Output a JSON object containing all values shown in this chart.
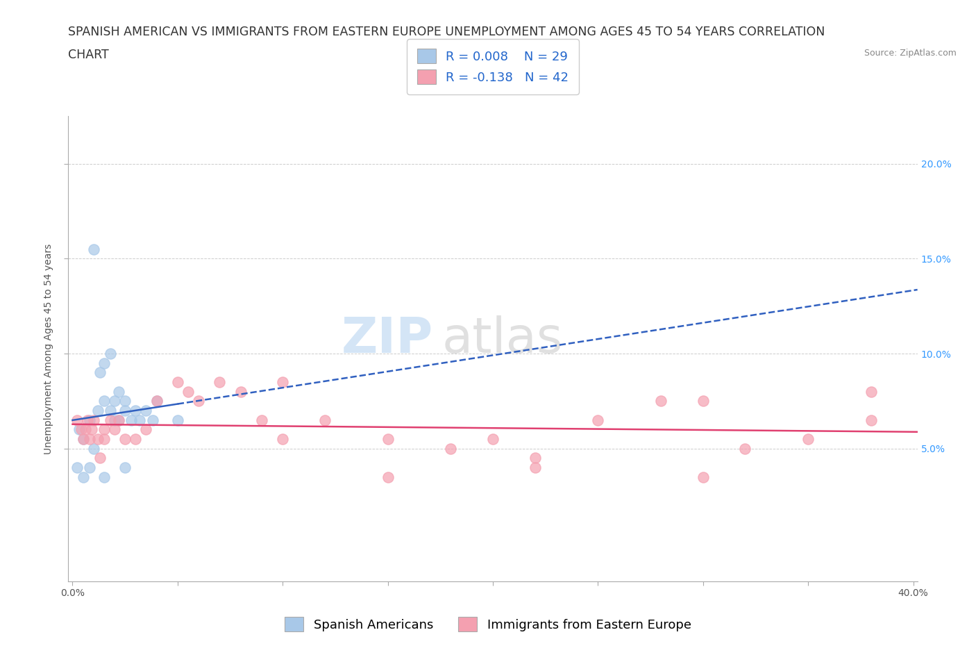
{
  "title_line1": "SPANISH AMERICAN VS IMMIGRANTS FROM EASTERN EUROPE UNEMPLOYMENT AMONG AGES 45 TO 54 YEARS CORRELATION",
  "title_line2": "CHART",
  "source_text": "Source: ZipAtlas.com",
  "ylabel": "Unemployment Among Ages 45 to 54 years",
  "xlim": [
    -0.002,
    0.402
  ],
  "ylim": [
    -0.02,
    0.225
  ],
  "xtick_labels": [
    "0.0%",
    "",
    "",
    "",
    "",
    "",
    "",
    "",
    "40.0%"
  ],
  "xtick_values": [
    0.0,
    0.05,
    0.1,
    0.15,
    0.2,
    0.25,
    0.3,
    0.35,
    0.4
  ],
  "ytick_labels": [
    "5.0%",
    "10.0%",
    "15.0%",
    "20.0%"
  ],
  "ytick_values": [
    0.05,
    0.1,
    0.15,
    0.2
  ],
  "blue_color": "#a8c8e8",
  "pink_color": "#f4a0b0",
  "blue_line_color": "#3060c0",
  "pink_line_color": "#e04070",
  "r_blue": 0.008,
  "n_blue": 29,
  "r_pink": -0.138,
  "n_pink": 42,
  "legend_label_blue": "Spanish Americans",
  "legend_label_pink": "Immigrants from Eastern Europe",
  "watermark_zip": "ZIP",
  "watermark_atlas": "atlas",
  "blue_scatter_x": [
    0.003,
    0.005,
    0.008,
    0.01,
    0.01,
    0.012,
    0.013,
    0.015,
    0.015,
    0.018,
    0.018,
    0.02,
    0.02,
    0.022,
    0.022,
    0.025,
    0.025,
    0.028,
    0.03,
    0.032,
    0.035,
    0.038,
    0.04,
    0.002,
    0.005,
    0.008,
    0.015,
    0.025,
    0.05
  ],
  "blue_scatter_y": [
    0.06,
    0.055,
    0.065,
    0.05,
    0.155,
    0.07,
    0.09,
    0.075,
    0.095,
    0.1,
    0.07,
    0.075,
    0.065,
    0.08,
    0.065,
    0.075,
    0.07,
    0.065,
    0.07,
    0.065,
    0.07,
    0.065,
    0.075,
    0.04,
    0.035,
    0.04,
    0.035,
    0.04,
    0.065
  ],
  "pink_scatter_x": [
    0.002,
    0.004,
    0.005,
    0.006,
    0.007,
    0.008,
    0.009,
    0.01,
    0.012,
    0.013,
    0.015,
    0.015,
    0.018,
    0.02,
    0.022,
    0.025,
    0.03,
    0.035,
    0.04,
    0.05,
    0.055,
    0.06,
    0.07,
    0.08,
    0.09,
    0.1,
    0.12,
    0.15,
    0.18,
    0.2,
    0.22,
    0.25,
    0.28,
    0.3,
    0.32,
    0.35,
    0.38,
    0.1,
    0.15,
    0.22,
    0.3,
    0.38
  ],
  "pink_scatter_y": [
    0.065,
    0.06,
    0.055,
    0.06,
    0.065,
    0.055,
    0.06,
    0.065,
    0.055,
    0.045,
    0.06,
    0.055,
    0.065,
    0.06,
    0.065,
    0.055,
    0.055,
    0.06,
    0.075,
    0.085,
    0.08,
    0.075,
    0.085,
    0.08,
    0.065,
    0.055,
    0.065,
    0.055,
    0.05,
    0.055,
    0.045,
    0.065,
    0.075,
    0.035,
    0.05,
    0.055,
    0.065,
    0.085,
    0.035,
    0.04,
    0.075,
    0.08
  ],
  "background_color": "#ffffff",
  "grid_color": "#cccccc",
  "title_fontsize": 12.5,
  "axis_label_fontsize": 10,
  "tick_fontsize": 10,
  "legend_fontsize": 13
}
